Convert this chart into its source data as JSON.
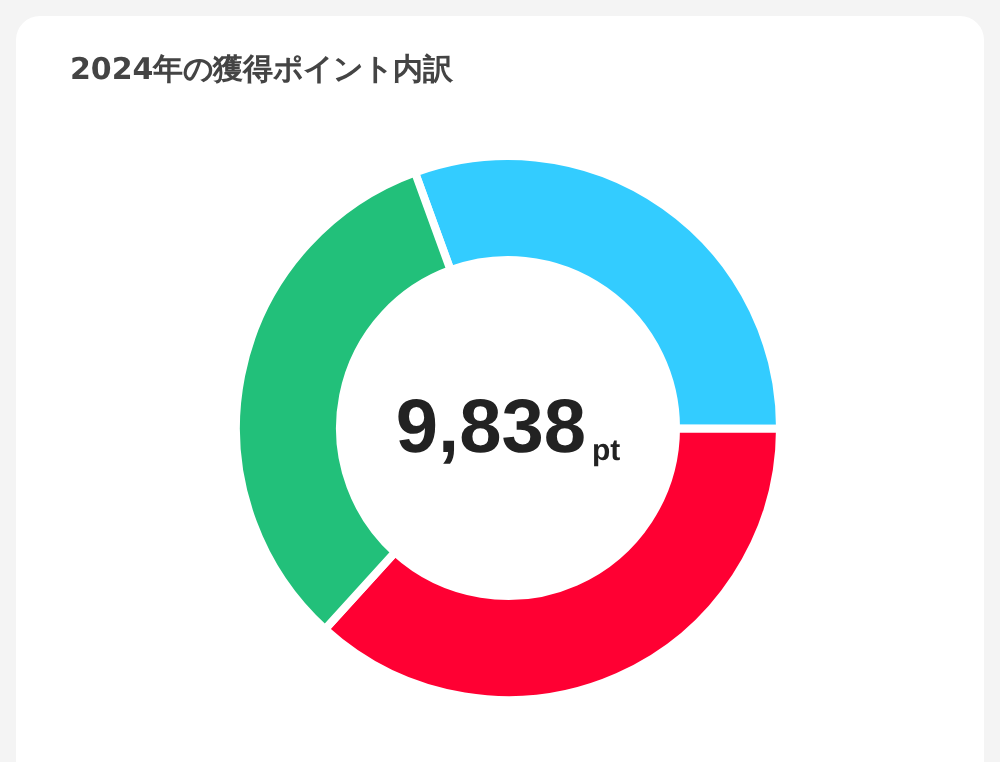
{
  "chart_data": {
    "type": "donut",
    "title": "2024年の獲得ポイント内訳",
    "categories": [
      null,
      null,
      null
    ],
    "values": [
      30.6,
      36.7,
      32.7
    ],
    "colors": [
      "#33ccff",
      "#ff0033",
      "#22c07a"
    ],
    "annotations": [
      "9,838",
      "pt"
    ]
  }
}
